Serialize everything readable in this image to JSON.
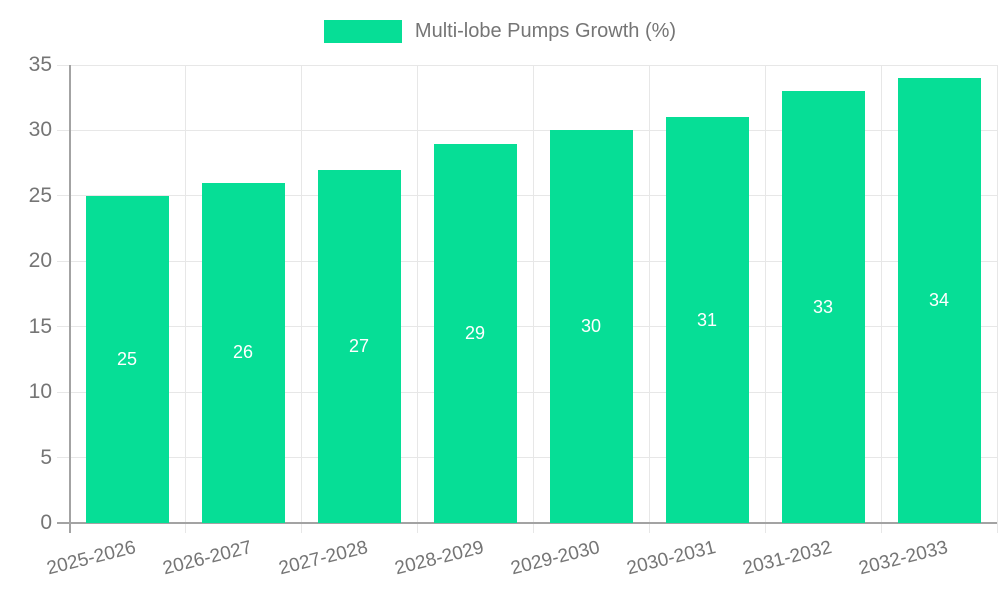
{
  "chart_data": {
    "type": "bar",
    "legend_label": "Multi-lobe Pumps Growth (%)",
    "legend_position": "top",
    "categories": [
      "2025-2026",
      "2026-2027",
      "2027-2028",
      "2028-2029",
      "2029-2030",
      "2030-2031",
      "2031-2032",
      "2032-2033"
    ],
    "values": [
      25,
      26,
      27,
      29,
      30,
      31,
      33,
      34
    ],
    "yticks": [
      0,
      5,
      10,
      15,
      20,
      25,
      30,
      35
    ],
    "ylim": [
      0,
      35
    ],
    "xlabel": "",
    "ylabel": "",
    "grid": true,
    "value_labels": "centered-white",
    "colors": {
      "bar": "#06DE96",
      "value_label": "#ffffff",
      "axis_line": "#a3a3a3",
      "grid_line": "#e7e7e7",
      "text": "#757575",
      "background": "#ffffff"
    }
  }
}
